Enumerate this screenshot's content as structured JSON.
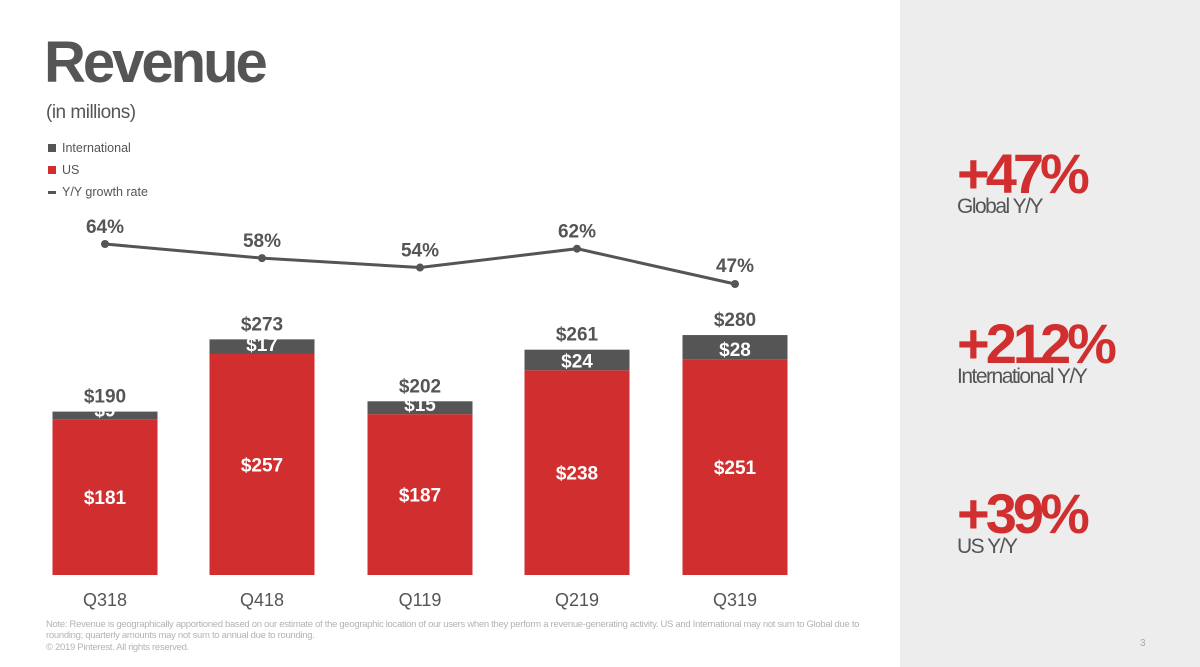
{
  "slide": {
    "title": "Revenue",
    "subtitle": "(in millions)",
    "note": "Note: Revenue is geographically apportioned based on our estimate of the geographic location of our users when they perform a revenue-generating activity. US and International may not sum to Global due to rounding; quarterly amounts may not sum to annual due to rounding.",
    "copyright": "© 2019 Pinterest. All rights reserved.",
    "page_number": "3"
  },
  "legend": [
    {
      "label": "International",
      "color": "#555555",
      "kind": "square"
    },
    {
      "label": "US",
      "color": "#d12f2f",
      "kind": "square"
    },
    {
      "label": "Y/Y growth rate",
      "color": "#555555",
      "kind": "line"
    }
  ],
  "stats": [
    {
      "value": "+47%",
      "label": "Global Y/Y"
    },
    {
      "value": "+212%",
      "label": "International Y/Y"
    },
    {
      "value": "+39%",
      "label": "US Y/Y"
    }
  ],
  "chart_data": {
    "type": "bar",
    "stacked": true,
    "categories": [
      "Q318",
      "Q418",
      "Q119",
      "Q219",
      "Q319"
    ],
    "series": [
      {
        "name": "US",
        "values": [
          181,
          257,
          187,
          238,
          251
        ],
        "labels": [
          "$181",
          "$257",
          "$187",
          "$238",
          "$251"
        ],
        "color": "#d12f2f"
      },
      {
        "name": "International",
        "values": [
          9,
          17,
          15,
          24,
          28
        ],
        "labels": [
          "$9",
          "$17",
          "$15",
          "$24",
          "$28"
        ],
        "color": "#555555"
      }
    ],
    "totals": [
      190,
      273,
      202,
      261,
      280
    ],
    "total_labels": [
      "$190",
      "$273",
      "$202",
      "$261",
      "$280"
    ],
    "growth": {
      "name": "Y/Y growth rate",
      "values": [
        64,
        58,
        54,
        62,
        47
      ],
      "labels": [
        "64%",
        "58%",
        "54%",
        "62%",
        "47%"
      ],
      "color": "#555555"
    }
  }
}
